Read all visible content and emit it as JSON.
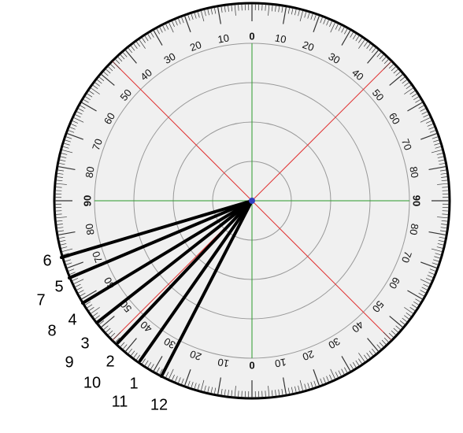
{
  "scale_labels": [
    0,
    10,
    20,
    30,
    40,
    50,
    60,
    70,
    80,
    90,
    80,
    70,
    60,
    50,
    40,
    30,
    20,
    10,
    0,
    10,
    20,
    30,
    40,
    50,
    60,
    70,
    80,
    90,
    80,
    70,
    60,
    50,
    40,
    30,
    20,
    10
  ],
  "line_labels": [
    6,
    5,
    7,
    4,
    8,
    3,
    9,
    2,
    10,
    1,
    11,
    12
  ]
}
